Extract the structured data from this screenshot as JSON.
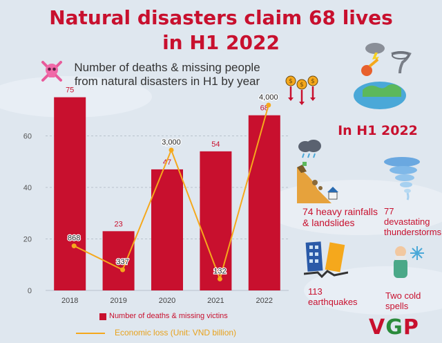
{
  "title_line1": "Natural disasters claim 68 lives",
  "title_line2": "in H1 2022",
  "subtitle": "Number of deaths & missing people from natural disasters in H1 by year",
  "in_h1_heading": "In H1 2022",
  "stats": {
    "rainfalls_line1": "74 heavy rainfalls",
    "rainfalls_line2": "& landslides",
    "thunderstorms_line1": "77 devastating",
    "thunderstorms_line2": "thunderstorms",
    "earthquakes_line1": "113",
    "earthquakes_line2": "earthquakes",
    "cold_line1": "Two cold",
    "cold_line2": "spells"
  },
  "logo": {
    "v": "V",
    "g": "G",
    "p": "P"
  },
  "colors": {
    "bar": "#c8102e",
    "line": "#f5a81c",
    "title": "#c8102e",
    "logo_v": "#c8102e",
    "logo_g": "#2a8a3a",
    "logo_p": "#c8102e"
  },
  "chart_data": {
    "type": "bar",
    "categories": [
      "2018",
      "2019",
      "2020",
      "2021",
      "2022"
    ],
    "series": [
      {
        "name": "Number of deaths & missing victins",
        "type": "bar",
        "values": [
          75,
          23,
          47,
          54,
          68
        ]
      },
      {
        "name": "Economic loss (Unit: VND billion)",
        "type": "line",
        "values": [
          868,
          337,
          3000,
          132,
          4000
        ],
        "labels": [
          "868",
          "337",
          "3,000",
          "132",
          "4,000"
        ]
      }
    ],
    "y_ticks": [
      0,
      20,
      40,
      60
    ],
    "ylim": [
      0,
      80
    ],
    "grid": true,
    "legend_position": "bottom"
  }
}
